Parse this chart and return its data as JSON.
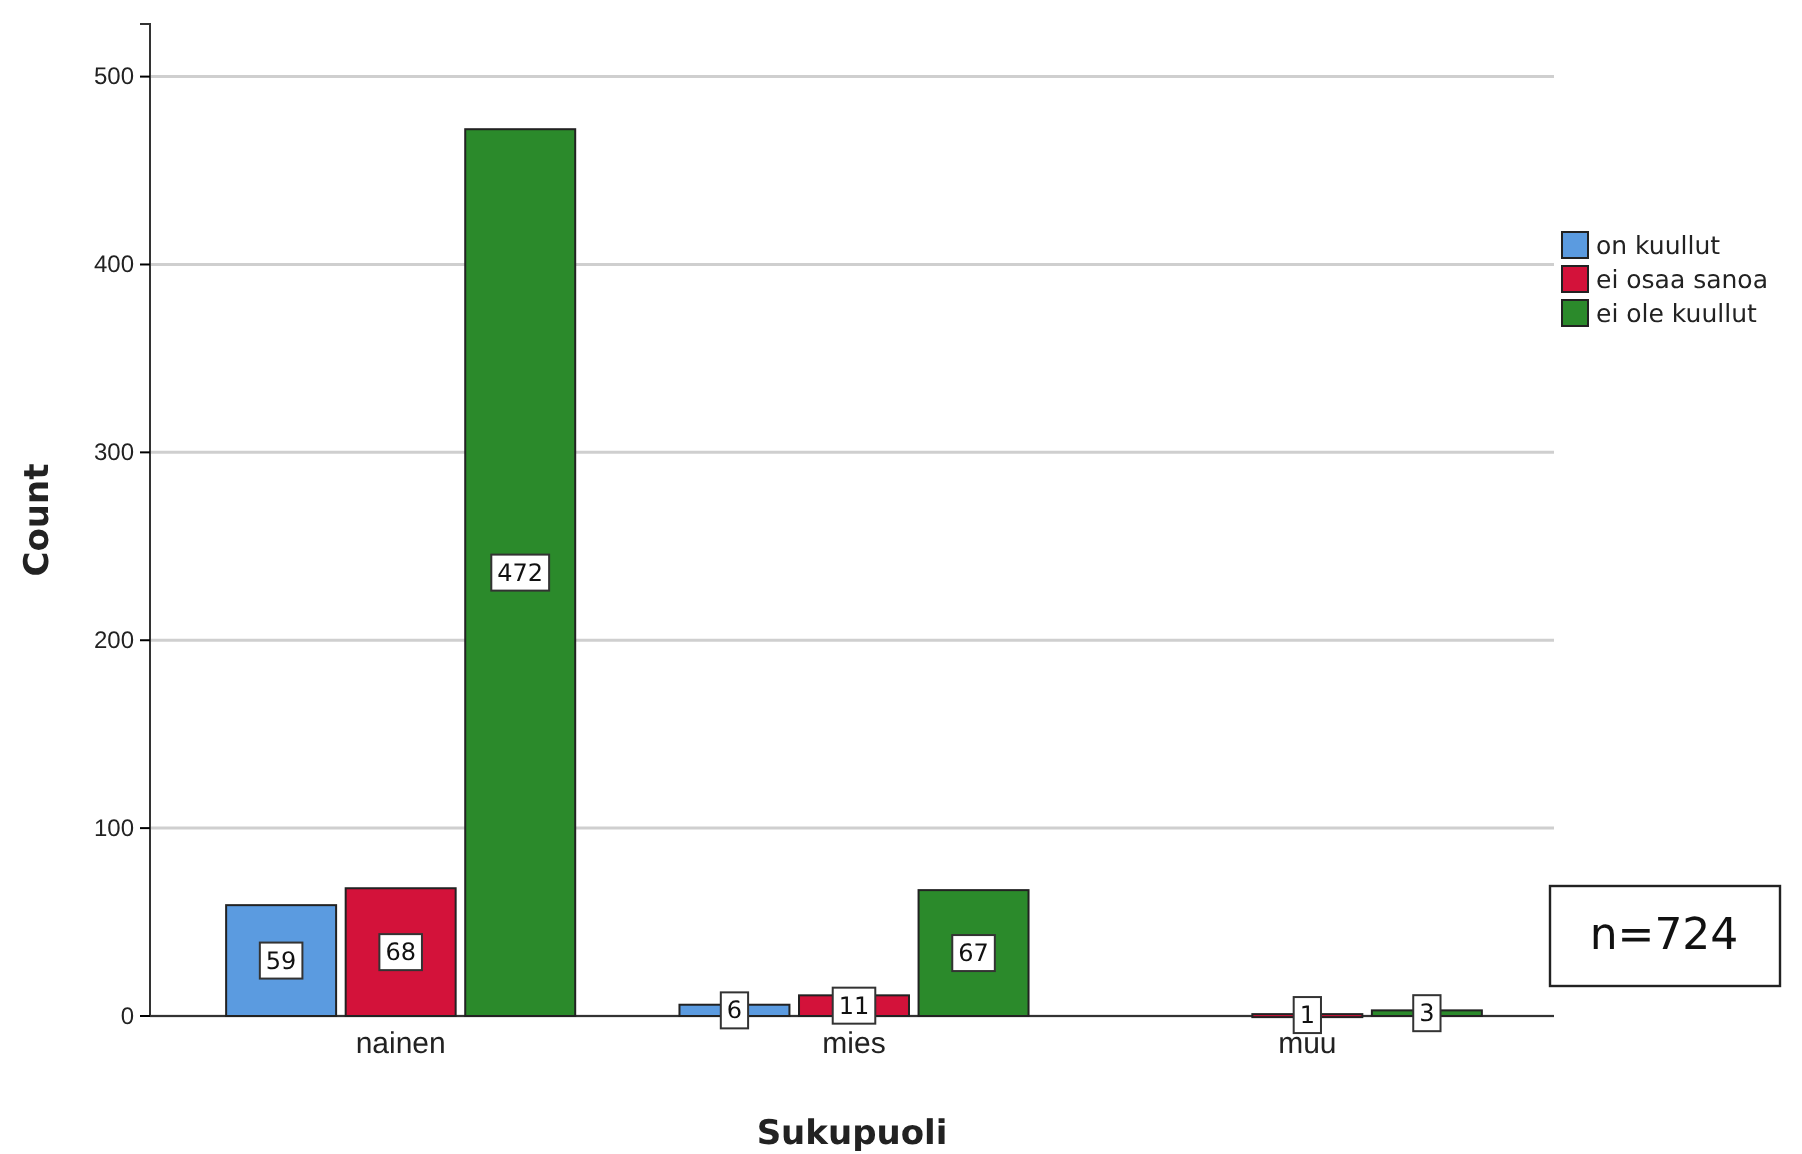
{
  "chart_data": {
    "type": "bar",
    "xlabel": "Sukupuoli",
    "ylabel": "Count",
    "categories": [
      "nainen",
      "mies",
      "muu"
    ],
    "series": [
      {
        "name": "on kuullut",
        "color": "#5b9be0",
        "values": [
          59,
          6,
          null
        ]
      },
      {
        "name": "ei osaa sanoa",
        "color": "#d3123a",
        "values": [
          68,
          11,
          1
        ]
      },
      {
        "name": "ei ole kuullut",
        "color": "#2b8a2b",
        "values": [
          472,
          67,
          3
        ]
      }
    ],
    "ylim": [
      0,
      528
    ],
    "yticks": [
      0,
      100,
      200,
      300,
      400,
      500
    ],
    "grid": "y",
    "legend": "right",
    "data_labels": true,
    "annotations": [
      "n=724"
    ]
  }
}
